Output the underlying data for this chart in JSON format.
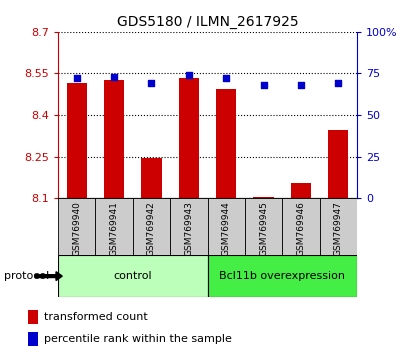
{
  "title": "GDS5180 / ILMN_2617925",
  "samples": [
    "GSM769940",
    "GSM769941",
    "GSM769942",
    "GSM769943",
    "GSM769944",
    "GSM769945",
    "GSM769946",
    "GSM769947"
  ],
  "transformed_counts": [
    8.515,
    8.525,
    8.245,
    8.535,
    8.495,
    8.105,
    8.155,
    8.345
  ],
  "percentile_ranks": [
    72,
    73,
    69,
    74,
    72,
    68,
    68,
    69
  ],
  "ylim_left": [
    8.1,
    8.7
  ],
  "ylim_right": [
    0,
    100
  ],
  "yticks_left": [
    8.1,
    8.25,
    8.4,
    8.55,
    8.7
  ],
  "yticks_right": [
    0,
    25,
    50,
    75,
    100
  ],
  "bar_color": "#cc0000",
  "dot_color": "#0000cc",
  "bar_baseline": 8.1,
  "groups": [
    {
      "label": "control",
      "start": 0,
      "end": 4,
      "color": "#bbffbb"
    },
    {
      "label": "Bcl11b overexpression",
      "start": 4,
      "end": 8,
      "color": "#44ee44"
    }
  ],
  "protocol_label": "protocol",
  "legend_bar_label": "transformed count",
  "legend_dot_label": "percentile rank within the sample",
  "grid_color": "black",
  "sample_box_color": "#cccccc",
  "left_tick_color": "#cc0000",
  "right_tick_color": "#0000cc",
  "title_fontsize": 10,
  "tick_fontsize": 8,
  "bar_width": 0.55
}
